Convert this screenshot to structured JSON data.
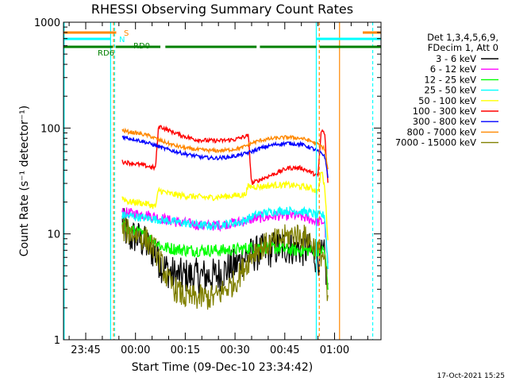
{
  "chart_data": {
    "type": "line",
    "title": "RHESSI Observing Summary Count Rates",
    "xlabel": "Start Time (09-Dec-10 23:34:42)",
    "ylabel": "Count Rate (s⁻¹ detector⁻¹)",
    "y_scale": "log",
    "ylim": [
      1,
      1000
    ],
    "xlim_minutes": [
      -21.7,
      74
    ],
    "x_tick_labels": [
      {
        "minute": -15,
        "label": "23:45"
      },
      {
        "minute": 0,
        "label": "00:00"
      },
      {
        "minute": 15,
        "label": "00:15"
      },
      {
        "minute": 30,
        "label": "00:30"
      },
      {
        "minute": 45,
        "label": "00:45"
      },
      {
        "minute": 60,
        "label": "01:00"
      }
    ],
    "y_tick_labels": [
      {
        "value": 1,
        "label": "1"
      },
      {
        "value": 10,
        "label": "10"
      },
      {
        "value": 100,
        "label": "100"
      },
      {
        "value": 1000,
        "label": "1000"
      }
    ],
    "legend": {
      "header": [
        "Det 1,3,4,5,6,9,",
        "FDecim 1, Att 0"
      ],
      "placement": "right"
    },
    "series": [
      {
        "name": "3 - 6 keV",
        "color": "#000000",
        "x": [
          -4,
          -2,
          0,
          3,
          6,
          8,
          10,
          12,
          15,
          18,
          21,
          24,
          27,
          30,
          33,
          36,
          40,
          44,
          48,
          52,
          55,
          57,
          58
        ],
        "y": [
          13,
          9,
          9.5,
          8,
          6.5,
          5,
          4.5,
          4,
          4,
          4,
          4,
          4,
          4.5,
          5,
          6,
          6.5,
          7,
          7.5,
          7.5,
          7,
          6,
          6,
          3
        ]
      },
      {
        "name": "6 - 12 keV",
        "color": "#ff00ff",
        "x": [
          -4,
          0,
          4,
          8,
          12,
          16,
          20,
          24,
          28,
          32,
          36,
          40,
          44,
          48,
          52,
          55,
          57,
          58
        ],
        "y": [
          16,
          15.5,
          15,
          14,
          13,
          12.5,
          12,
          12,
          12.5,
          13,
          14,
          14.5,
          15,
          15,
          14,
          13,
          13,
          5
        ]
      },
      {
        "name": "12 - 25 keV",
        "color": "#00ff00",
        "x": [
          -4,
          -2,
          0,
          3,
          6,
          8,
          12,
          16,
          20,
          24,
          28,
          32,
          36,
          40,
          44,
          48,
          52,
          55,
          57,
          58
        ],
        "y": [
          12,
          11,
          10.5,
          9.5,
          8.5,
          7.5,
          7.2,
          7,
          7,
          7,
          7,
          7.2,
          7.5,
          7.5,
          7.2,
          7,
          7,
          7,
          7,
          3
        ]
      },
      {
        "name": "25 - 50 keV",
        "color": "#00ffff",
        "x": [
          -4,
          0,
          4,
          8,
          12,
          16,
          20,
          24,
          28,
          32,
          36,
          40,
          44,
          48,
          52,
          55,
          57,
          58
        ],
        "y": [
          15,
          14.5,
          14,
          13.5,
          13,
          12.5,
          12,
          12,
          12.5,
          13,
          15,
          16,
          16.5,
          16.5,
          16,
          15,
          15,
          5
        ]
      },
      {
        "name": "50 - 100 keV",
        "color": "#ffff00",
        "x": [
          -4,
          -2,
          0,
          2,
          4,
          6,
          7,
          10,
          14,
          18,
          22,
          26,
          30,
          33,
          34,
          38,
          42,
          46,
          50,
          53,
          55,
          56,
          57,
          58
        ],
        "y": [
          22,
          20,
          20,
          19.5,
          19,
          18,
          26,
          24,
          23,
          22.5,
          22,
          22.5,
          23,
          23.5,
          28,
          28,
          29,
          29,
          28,
          27,
          25,
          40,
          28,
          9
        ]
      },
      {
        "name": "100 - 300 keV",
        "color": "#ff0000",
        "x": [
          -4,
          0,
          3,
          6,
          7,
          10,
          14,
          18,
          22,
          26,
          30,
          34,
          35,
          38,
          42,
          46,
          50,
          53,
          55,
          56,
          57,
          58
        ],
        "y": [
          48,
          46,
          44,
          42,
          105,
          95,
          85,
          78,
          76,
          76,
          78,
          85,
          30,
          33,
          37,
          42,
          42,
          38,
          35,
          95,
          90,
          30
        ]
      },
      {
        "name": "300 - 800 keV",
        "color": "#0000ff",
        "x": [
          -4,
          -2,
          0,
          4,
          8,
          12,
          16,
          20,
          24,
          28,
          32,
          35,
          38,
          42,
          46,
          50,
          53,
          55,
          57,
          58
        ],
        "y": [
          83,
          80,
          78,
          72,
          65,
          60,
          56,
          53,
          52,
          53,
          56,
          60,
          65,
          70,
          72,
          70,
          65,
          60,
          55,
          35
        ]
      },
      {
        "name": "800 - 7000 keV",
        "color": "#ff8800",
        "x": [
          -4,
          -2,
          0,
          4,
          8,
          12,
          16,
          20,
          24,
          28,
          32,
          35,
          38,
          42,
          46,
          50,
          53,
          55,
          57,
          58
        ],
        "y": [
          95,
          92,
          90,
          85,
          75,
          68,
          64,
          62,
          61,
          62,
          65,
          72,
          77,
          80,
          82,
          80,
          75,
          70,
          64,
          40
        ]
      },
      {
        "name": "7000 - 15000 keV",
        "color": "#808000",
        "x": [
          -4,
          -2,
          0,
          3,
          6,
          8,
          10,
          12,
          15,
          18,
          21,
          24,
          27,
          30,
          33,
          36,
          40,
          44,
          48,
          52,
          55,
          57,
          58
        ],
        "y": [
          11,
          10.5,
          10,
          9,
          7,
          5,
          3.5,
          3,
          2.5,
          2.5,
          2.5,
          2.5,
          3,
          3.5,
          5,
          7,
          8,
          9,
          10,
          9,
          7,
          6,
          2
        ]
      }
    ],
    "annotations": [
      {
        "text": "S",
        "color": "#ff8800"
      },
      {
        "text": "N",
        "color": "#00ffff"
      },
      {
        "text": "RD0",
        "color": "#008000"
      },
      {
        "text": "RD6",
        "color": "#008000"
      }
    ],
    "bar_segments": [
      {
        "name": "S",
        "color": "#ff8800",
        "segments": [
          [
            -21.7,
            -5.8
          ],
          [
            68.5,
            74
          ]
        ]
      },
      {
        "name": "N",
        "color": "#00ffff",
        "segments": [
          [
            -21.7,
            -7.5
          ],
          [
            54.5,
            74
          ]
        ]
      },
      {
        "name": "RD",
        "color": "#008000",
        "segments": [
          [
            -21.7,
            -6.8
          ],
          [
            -6,
            7.5
          ],
          [
            9,
            36.5
          ],
          [
            37.5,
            54.5
          ],
          [
            55.5,
            74
          ]
        ]
      }
    ],
    "vertical_markers": [
      {
        "minute": -21.5,
        "color": "#00ffff",
        "style": "solid"
      },
      {
        "minute": -7.5,
        "color": "#00ffff",
        "style": "solid"
      },
      {
        "minute": -6.6,
        "color": "#ff8800",
        "style": "dashed"
      },
      {
        "minute": -6.3,
        "color": "#00ffff",
        "style": "dashed"
      },
      {
        "minute": 54.5,
        "color": "#00ffff",
        "style": "solid"
      },
      {
        "minute": 55.4,
        "color": "#ff8800",
        "style": "dashed"
      },
      {
        "minute": 61.5,
        "color": "#ff8800",
        "style": "solid"
      },
      {
        "minute": 71.5,
        "color": "#00ffff",
        "style": "dashed"
      }
    ],
    "timestamp": "17-Oct-2021 15:25"
  }
}
